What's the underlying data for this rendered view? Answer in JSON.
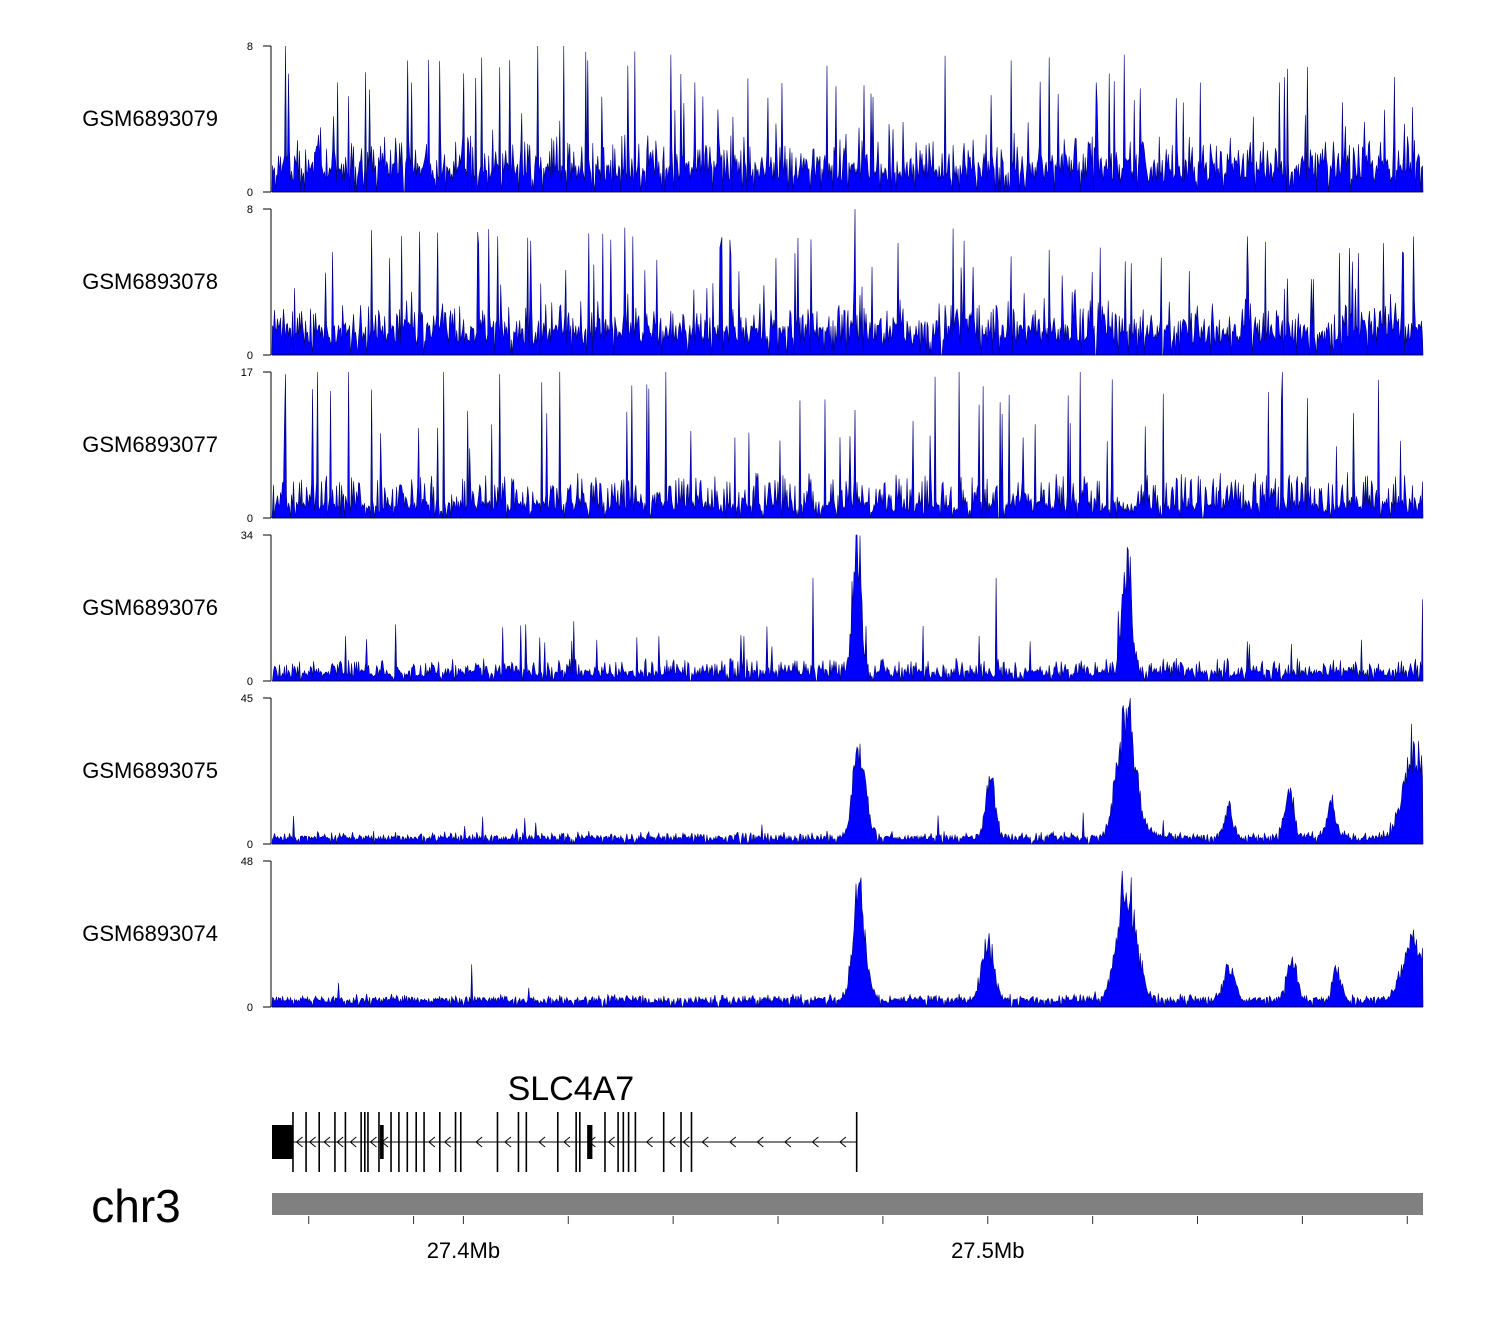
{
  "chart_data": {
    "type": "area",
    "title": "",
    "region": {
      "chromosome": "chr3",
      "start_mb": 27.3635,
      "end_mb": 27.583
    },
    "colors": {
      "fill": "#0000ff",
      "edge": "#00007a",
      "axis": "#000000",
      "ideogram": "#808080",
      "gene": "#000000"
    },
    "tracks": [
      {
        "name": "GSM6893079",
        "ylim": [
          0,
          8
        ],
        "profile": {
          "base": 1.3,
          "noise": 1.6,
          "spike_rate": 0.06,
          "spike_height": [
            3,
            8
          ],
          "peaks": []
        },
        "notable_spikes": [
          {
            "x_mb": 27.366,
            "value": 8
          },
          {
            "x_mb": 27.376,
            "value": 6
          },
          {
            "x_mb": 27.39,
            "value": 6
          },
          {
            "x_mb": 27.4,
            "value": 6.5
          },
          {
            "x_mb": 27.414,
            "value": 8
          },
          {
            "x_mb": 27.419,
            "value": 8
          },
          {
            "x_mb": 27.444,
            "value": 6
          },
          {
            "x_mb": 27.5205,
            "value": 6
          },
          {
            "x_mb": 27.5405,
            "value": 6
          },
          {
            "x_mb": 27.5555,
            "value": 6
          },
          {
            "x_mb": 27.5775,
            "value": 6.3
          }
        ]
      },
      {
        "name": "GSM6893078",
        "ylim": [
          0,
          8
        ],
        "profile": {
          "base": 1.3,
          "noise": 1.5,
          "spike_rate": 0.06,
          "spike_height": [
            3,
            7
          ],
          "peaks": []
        },
        "notable_spikes": [
          {
            "x_mb": 27.4065,
            "value": 6.5
          },
          {
            "x_mb": 27.4595,
            "value": 5.3
          },
          {
            "x_mb": 27.4745,
            "value": 8
          },
          {
            "x_mb": 27.5495,
            "value": 6.5
          },
          {
            "x_mb": 27.581,
            "value": 6.5
          }
        ]
      },
      {
        "name": "GSM6893077",
        "ylim": [
          0,
          17
        ],
        "profile": {
          "base": 1.5,
          "noise": 3.5,
          "spike_rate": 0.05,
          "spike_height": [
            8,
            17
          ],
          "peaks": []
        },
        "notable_spikes": [
          {
            "x_mb": 27.372,
            "value": 17
          },
          {
            "x_mb": 27.378,
            "value": 17
          },
          {
            "x_mb": 27.3962,
            "value": 17
          },
          {
            "x_mb": 27.4182,
            "value": 17
          },
          {
            "x_mb": 27.4385,
            "value": 17
          },
          {
            "x_mb": 27.4945,
            "value": 17
          },
          {
            "x_mb": 27.5175,
            "value": 17
          },
          {
            "x_mb": 27.556,
            "value": 17
          }
        ]
      },
      {
        "name": "GSM6893076",
        "ylim": [
          0,
          34
        ],
        "profile": {
          "base": 2,
          "noise": 3,
          "spike_rate": 0.03,
          "spike_height": [
            8,
            14
          ],
          "peaks": [
            {
              "x_mb": 27.475,
              "height": 32,
              "width": 0.0008
            },
            {
              "x_mb": 27.5265,
              "height": 28,
              "width": 0.0009
            }
          ]
        },
        "notable_spikes": [
          {
            "x_mb": 27.475,
            "value": 34
          },
          {
            "x_mb": 27.527,
            "value": 29
          },
          {
            "x_mb": 27.5015,
            "value": 24
          },
          {
            "x_mb": 27.4665,
            "value": 24
          },
          {
            "x_mb": 27.583,
            "value": 19
          }
        ]
      },
      {
        "name": "GSM6893075",
        "ylim": [
          0,
          45
        ],
        "profile": {
          "base": 2,
          "noise": 1.5,
          "spike_rate": 0.01,
          "spike_height": [
            4,
            10
          ],
          "peaks": [
            {
              "x_mb": 27.4755,
              "height": 32,
              "width": 0.0012
            },
            {
              "x_mb": 27.5005,
              "height": 21,
              "width": 0.0009
            },
            {
              "x_mb": 27.5265,
              "height": 40,
              "width": 0.0018
            },
            {
              "x_mb": 27.5575,
              "height": 15,
              "width": 0.0009
            },
            {
              "x_mb": 27.5655,
              "height": 13,
              "width": 0.0008
            },
            {
              "x_mb": 27.5815,
              "height": 28,
              "width": 0.0022
            },
            {
              "x_mb": 27.546,
              "height": 10,
              "width": 0.0008
            }
          ]
        },
        "notable_spikes": [
          {
            "x_mb": 27.527,
            "value": 45
          }
        ]
      },
      {
        "name": "GSM6893074",
        "ylim": [
          0,
          48
        ],
        "profile": {
          "base": 2.5,
          "noise": 1.2,
          "spike_rate": 0.005,
          "spike_height": [
            3,
            8
          ],
          "peaks": [
            {
              "x_mb": 27.4755,
              "height": 40,
              "width": 0.0012
            },
            {
              "x_mb": 27.5,
              "height": 20,
              "width": 0.0012
            },
            {
              "x_mb": 27.5265,
              "height": 43,
              "width": 0.0018
            },
            {
              "x_mb": 27.546,
              "height": 13,
              "width": 0.001
            },
            {
              "x_mb": 27.558,
              "height": 14,
              "width": 0.001
            },
            {
              "x_mb": 27.5665,
              "height": 12,
              "width": 0.0008
            },
            {
              "x_mb": 27.5815,
              "height": 22,
              "width": 0.0022
            }
          ]
        },
        "notable_spikes": [
          {
            "x_mb": 27.4015,
            "value": 14
          }
        ]
      }
    ],
    "gene": {
      "name": "SLC4A7",
      "strand": "-",
      "start_mb": 27.3635,
      "end_mb": 27.475,
      "utr_blocks_mb": [
        [
          27.3635,
          27.3675
        ]
      ],
      "coding_blocks_mb": [
        [
          27.3841,
          27.3848
        ],
        [
          27.4236,
          27.4246
        ]
      ],
      "exons_mb": [
        27.3675,
        27.37,
        27.3725,
        27.3755,
        27.3775,
        27.3805,
        27.3812,
        27.3818,
        27.3839,
        27.3862,
        27.3877,
        27.3893,
        27.391,
        27.3925,
        27.3955,
        27.3985,
        27.3995,
        27.4065,
        27.4105,
        27.412,
        27.418,
        27.4215,
        27.4222,
        27.427,
        27.4295,
        27.4305,
        27.4315,
        27.4328,
        27.4382,
        27.4415,
        27.4435,
        27.475
      ]
    },
    "ideogram": {
      "label": "chr3"
    },
    "x_axis": {
      "tick_labels": [
        {
          "x_mb": 27.4,
          "label": "27.4Mb"
        },
        {
          "x_mb": 27.5,
          "label": "27.5Mb"
        }
      ],
      "ticks_mb": [
        27.3705,
        27.3905,
        27.4,
        27.42,
        27.44,
        27.46,
        27.48,
        27.5,
        27.52,
        27.54,
        27.56,
        27.58
      ]
    }
  }
}
